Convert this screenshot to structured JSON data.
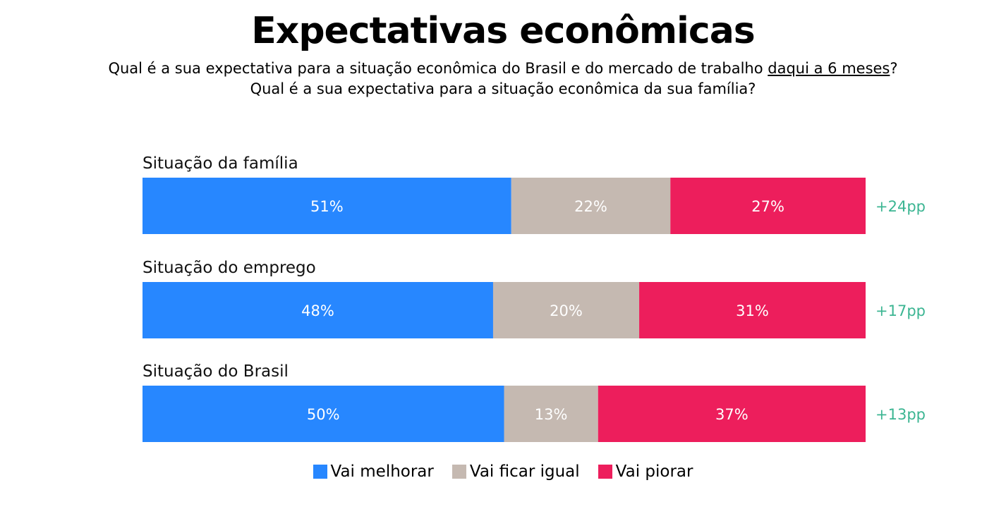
{
  "title": "Expectativas econômicas",
  "subtitle": {
    "line1_pre": "Qual é a sua expectativa para a situação econômica do Brasil e do mercado de trabalho ",
    "line1_underlined": "daqui a 6 meses",
    "line1_post": "?",
    "line2": "Qual é a sua expectativa para a situação econômica da sua família?"
  },
  "chart_data": {
    "type": "bar",
    "orientation": "horizontal-stacked-100",
    "categories": [
      "Situação da família",
      "Situação do emprego",
      "Situação do Brasil"
    ],
    "series": [
      {
        "name": "Vai melhorar",
        "color": "#2787ff",
        "values": [
          51,
          48,
          50
        ],
        "labels": [
          "51%",
          "48%",
          "50%"
        ]
      },
      {
        "name": "Vai ficar igual",
        "color": "#c5b9b1",
        "values": [
          22,
          20,
          13
        ],
        "labels": [
          "22%",
          "20%",
          "13%"
        ]
      },
      {
        "name": "Vai piorar",
        "color": "#ed1e5c",
        "values": [
          27,
          31,
          37
        ],
        "labels": [
          "27%",
          "31%",
          "37%"
        ]
      }
    ],
    "net_labels": [
      "+24pp",
      "+17pp",
      "+13pp"
    ],
    "net_color": "#3bb592",
    "legend_position": "bottom"
  }
}
